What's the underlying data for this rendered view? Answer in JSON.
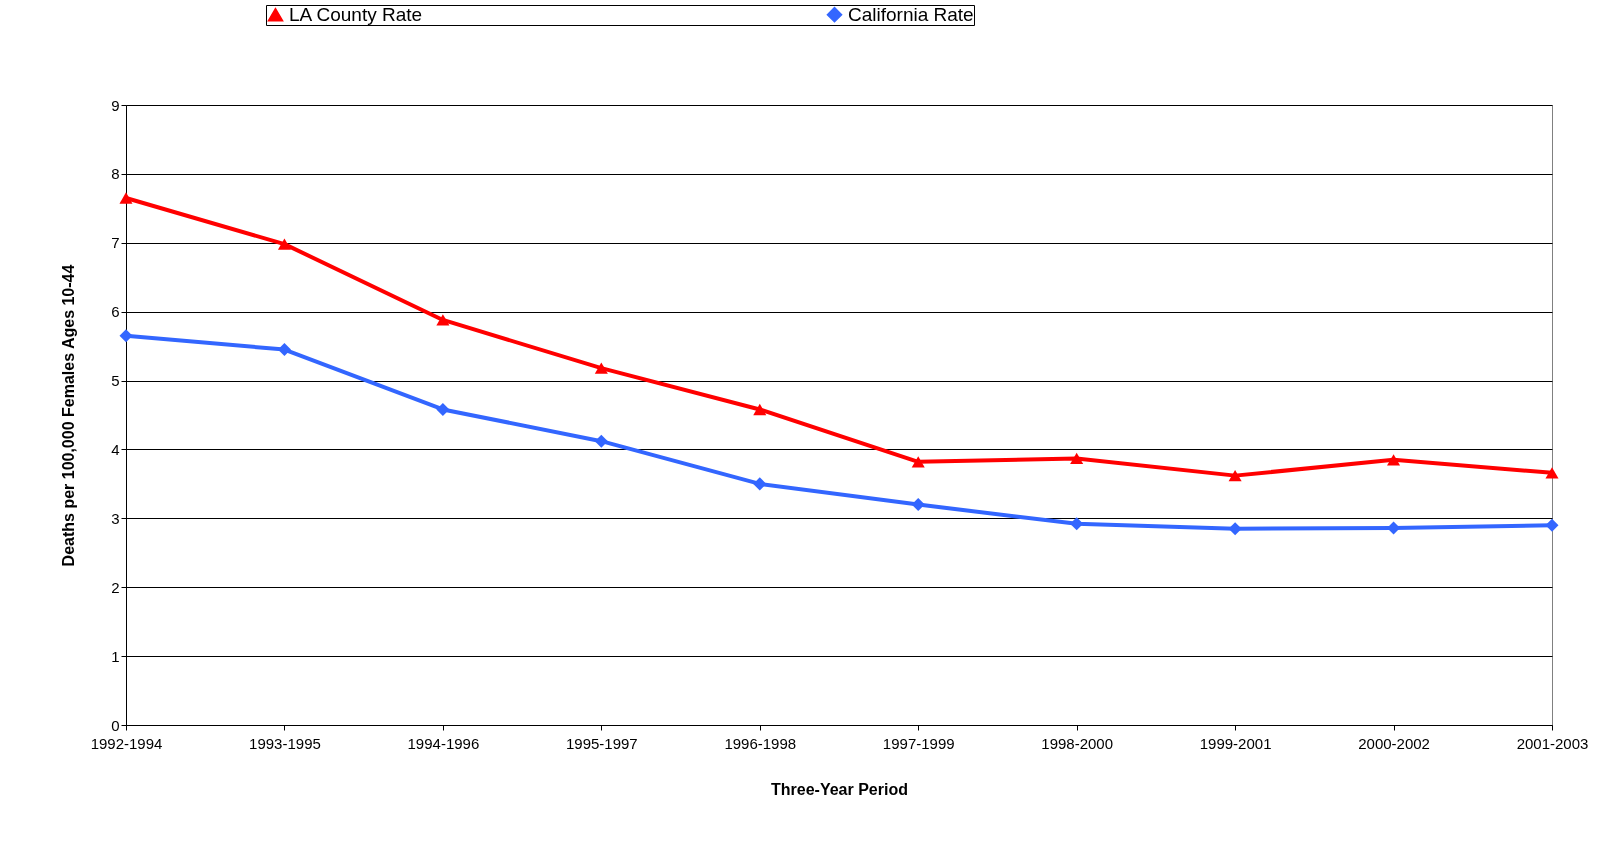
{
  "chart_data": {
    "type": "line",
    "xlabel": "Three-Year Period",
    "ylabel": "Deaths per 100,000 Females Ages 10-44",
    "categories": [
      "1992-1994",
      "1993-1995",
      "1994-1996",
      "1995-1997",
      "1996-1998",
      "1997-1999",
      "1998-2000",
      "1999-2001",
      "2000-2002",
      "2001-2003"
    ],
    "series": [
      {
        "name": "LA County Rate",
        "color": "#ff0000",
        "marker": "triangle",
        "values": [
          7.65,
          6.98,
          5.88,
          5.18,
          4.58,
          3.82,
          3.87,
          3.62,
          3.85,
          3.66
        ]
      },
      {
        "name": "California Rate",
        "color": "#3366ff",
        "marker": "diamond",
        "values": [
          5.65,
          5.45,
          4.58,
          4.12,
          3.5,
          3.2,
          2.92,
          2.85,
          2.86,
          2.9
        ]
      }
    ],
    "ylim": [
      0,
      9
    ],
    "yticks": [
      0,
      1,
      2,
      3,
      4,
      5,
      6,
      7,
      8,
      9
    ],
    "grid": "y",
    "legend": "top",
    "line_style": "solid"
  }
}
